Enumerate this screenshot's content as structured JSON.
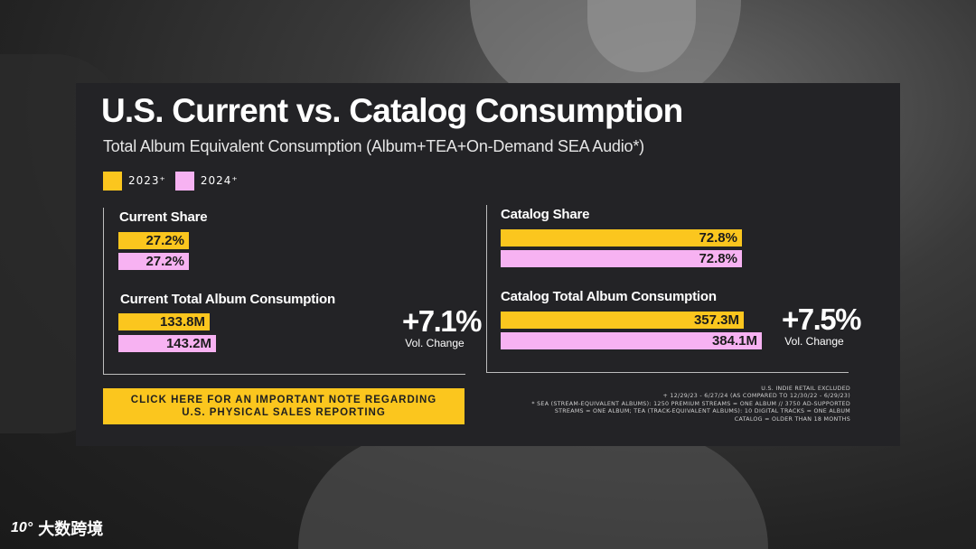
{
  "title": "U.S. Current vs. Catalog Consumption",
  "subtitle": "Total Album Equivalent Consumption (Album+TEA+On-Demand SEA Audio*)",
  "colors": {
    "y2023": "#fbc61e",
    "y2024": "#f7b2f2"
  },
  "legend": [
    {
      "label": "2023⁺",
      "color": "#fbc61e"
    },
    {
      "label": "2024⁺",
      "color": "#f7b2f2"
    }
  ],
  "chart_data": [
    {
      "type": "bar",
      "title": "Current Share",
      "categories": [
        "2023",
        "2024"
      ],
      "values": [
        27.2,
        27.2
      ],
      "value_labels": [
        "27.2%",
        "27.2%"
      ],
      "ylim": [
        0,
        100
      ]
    },
    {
      "type": "bar",
      "title": "Current Total Album Consumption",
      "categories": [
        "2023",
        "2024"
      ],
      "values": [
        133.8,
        143.2
      ],
      "value_labels": [
        "133.8M",
        "143.2M"
      ],
      "change_value": "+7.1%",
      "change_label": "Vol. Change",
      "ylim": [
        0,
        380
      ]
    },
    {
      "type": "bar",
      "title": "Catalog Share",
      "categories": [
        "2023",
        "2024"
      ],
      "values": [
        72.8,
        72.8
      ],
      "value_labels": [
        "72.8%",
        "72.8%"
      ],
      "ylim": [
        0,
        78
      ]
    },
    {
      "type": "bar",
      "title": "Catalog Total Album Consumption",
      "categories": [
        "2023",
        "2024"
      ],
      "values": [
        357.3,
        384.1
      ],
      "value_labels": [
        "357.3M",
        "384.1M"
      ],
      "change_value": "+7.5%",
      "change_label": "Vol. Change",
      "ylim": [
        0,
        380
      ]
    }
  ],
  "note_button": {
    "line1": "CLICK HERE FOR AN IMPORTANT NOTE REGARDING",
    "line2": "U.S. PHYSICAL SALES REPORTING"
  },
  "footnotes": [
    "U.S. INDIE RETAIL EXCLUDED",
    "+ 12/29/23 - 6/27/24 (AS COMPARED TO 12/30/22 - 6/29/23)",
    "* SEA (STREAM-EQUIVALENT ALBUMS): 1250 PREMIUM STREAMS = ONE ALBUM // 3750 AD-SUPPORTED",
    "STREAMS = ONE ALBUM; TEA (TRACK-EQUIVALENT ALBUMS): 10 DIGITAL TRACKS = ONE ALBUM",
    "CATALOG = OLDER THAN 18 MONTHS"
  ],
  "watermark": {
    "logo": "10°",
    "text": "大数跨境"
  }
}
